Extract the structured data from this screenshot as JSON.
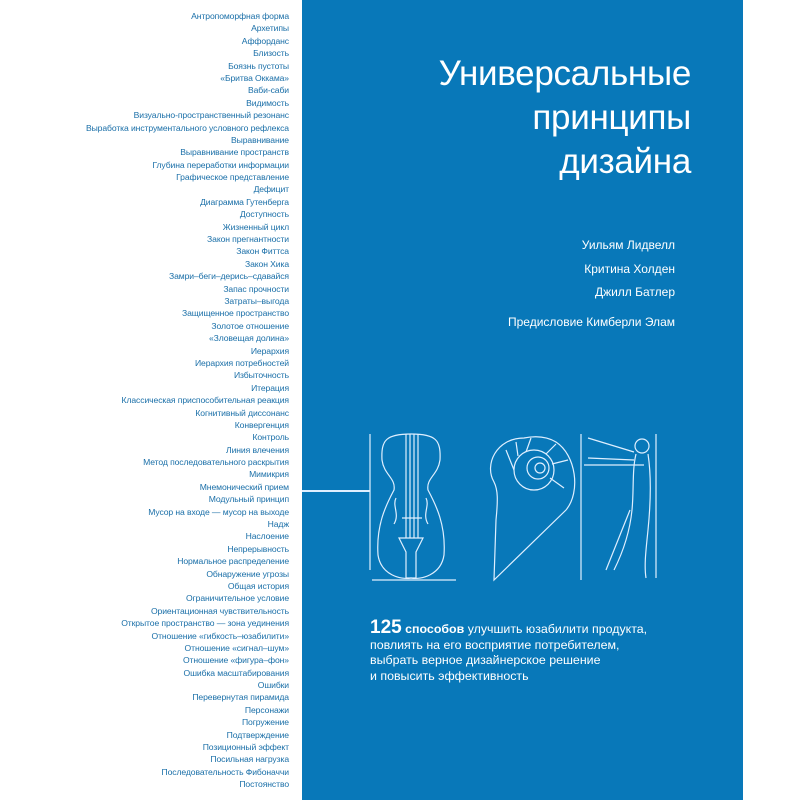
{
  "toc": [
    "Антропоморфная форма",
    "Архетипы",
    "Аффорданс",
    "Близость",
    "Боязнь пустоты",
    "«Бритва Оккама»",
    "Ваби-саби",
    "Видимость",
    "Визуально-пространственный резонанс",
    "Выработка инструментального условного рефлекса",
    "Выравнивание",
    "Выравнивание пространств",
    "Глубина переработки информации",
    "Графическое представление",
    "Дефицит",
    "Диаграмма Гутенберга",
    "Доступность",
    "Жизненный цикл",
    "Закон прегнантности",
    "Закон Фиттса",
    "Закон Хика",
    "Замри–беги–дерись–сдавайся",
    "Запас прочности",
    "Затраты–выгода",
    "Защищенное пространство",
    "Золотое отношение",
    "«Зловещая долина»",
    "Иерархия",
    "Иерархия потребностей",
    "Избыточность",
    "Итерация",
    "Классическая приспособительная реакция",
    "Когнитивный диссонанс",
    "Конвергенция",
    "Контроль",
    "Линия влечения",
    "Метод последовательного раскрытия",
    "Мимикрия",
    "Мнемонический прием",
    "Модульный принцип",
    "Мусор на входе — мусор на выходе",
    "Надж",
    "Наслоение",
    "Непрерывность",
    "Нормальное распределение",
    "Обнаружение угрозы",
    "Общая история",
    "Ограничительное условие",
    "Ориентационная чувствительность",
    "Открытое пространство — зона уединения",
    "Отношение «гибкость–юзабилити»",
    "Отношение «сигнал–шум»",
    "Отношение «фигура–фон»",
    "Ошибка масштабирования",
    "Ошибки",
    "Перевернутая пирамида",
    "Персонажи",
    "Погружение",
    "Подтверждение",
    "Позиционный эффект",
    "Посильная нагрузка",
    "Последовательность Фибоначчи",
    "Постоянство"
  ],
  "cover": {
    "title": [
      "Универсальные",
      "принципы",
      "дизайна"
    ],
    "authors": [
      "Уильям Лидвелл",
      "Критина Холден",
      "Джилл Батлер"
    ],
    "foreword": "Предисловие Кимберли Элам",
    "blurb": {
      "number": "125",
      "bold": "способов",
      "rest1": " улучшить юзабилити продукта,",
      "line2": "повлиять на его восприятие потребителем,",
      "line3": "выбрать верное дизайнерское решение",
      "line4": "и повысить эффективность"
    },
    "illustrations": [
      "violin-icon",
      "nautilus-shell-icon",
      "vitruvian-man-icon"
    ]
  },
  "colors": {
    "cover_blue": "#0878b9",
    "toc_text": "#1a6fa8",
    "line_art": "#dfefff"
  }
}
